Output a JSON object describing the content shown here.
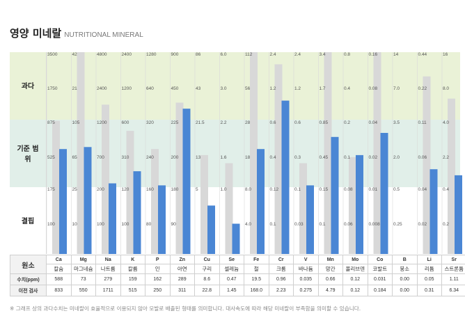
{
  "title": "영양 미네랄",
  "subtitle": "NUTRITIONAL MINERAL",
  "zones": [
    "과다",
    "기준 범위",
    "결핍"
  ],
  "colors": {
    "ref_bar": "#d8d8d8",
    "cur_bar": "#4a86d4",
    "zone_over": "#eaf2d7",
    "zone_normal": "#e1efe9"
  },
  "chart_data": {
    "type": "bar",
    "title": "영양 미네랄",
    "categories": [
      "Ca",
      "Mg",
      "Na",
      "K",
      "P",
      "Zn",
      "Cu",
      "Se",
      "Fe",
      "Cr",
      "V",
      "Mn",
      "Mo",
      "Co",
      "B",
      "Li",
      "Sr"
    ],
    "axis_ticks": [
      [
        "3500",
        "1750",
        "875",
        "525",
        "175",
        "100"
      ],
      [
        "42",
        "21",
        "105",
        "65",
        "25",
        "10"
      ],
      [
        "4800",
        "2400",
        "1200",
        "700",
        "200",
        "100"
      ],
      [
        "2400",
        "1200",
        "600",
        "310",
        "120",
        "100"
      ],
      [
        "1280",
        "640",
        "320",
        "240",
        "160",
        "80"
      ],
      [
        "900",
        "450",
        "225",
        "200",
        "180",
        "90"
      ],
      [
        "86",
        "43",
        "21.5",
        "13",
        "5"
      ],
      [
        "6.0",
        "3.0",
        "2.2",
        "1.6",
        "1.0"
      ],
      [
        "112",
        "56",
        "28",
        "18",
        "8.0",
        "4.0"
      ],
      [
        "2.4",
        "1.2",
        "0.6",
        "0.4",
        "0.12",
        "0.1"
      ],
      [
        "2.4",
        "1.2",
        "0.6",
        "0.3",
        "0.1",
        "0.03"
      ],
      [
        "3.4",
        "1.7",
        "0.85",
        "0.45",
        "0.15",
        "0.1"
      ],
      [
        "0.8",
        "0.4",
        "0.2",
        "0.1",
        "0.08",
        "0.06"
      ],
      [
        "0.16",
        "0.08",
        "0.04",
        "0.02",
        "0.01",
        "0.008"
      ],
      [
        "14",
        "7.0",
        "3.5",
        "2.0",
        "0.5",
        "0.25"
      ],
      [
        "0.44",
        "0.22",
        "0.11",
        "0.06",
        "0.04",
        "0.02"
      ],
      [
        "16",
        "8.0",
        "4.0",
        "2.2",
        "0.4",
        "0.2"
      ]
    ],
    "series": [
      {
        "name": "이전 검사",
        "values": [
          833,
          550,
          1711,
          515,
          250,
          311,
          22.8,
          1.45,
          168.0,
          2.23,
          0.275,
          4.79,
          0.12,
          0.184,
          0.0,
          0.31,
          6.34
        ]
      },
      {
        "name": "수치(ppm)",
        "values": [
          588,
          73,
          279,
          159,
          162,
          289,
          8.6,
          0.47,
          19.5,
          0.96,
          0.035,
          0.66,
          0.12,
          0.031,
          0.0,
          0.05,
          1.11
        ]
      }
    ],
    "ref_levels": [
      0.66,
      1.0,
      0.74,
      0.61,
      0.52,
      0.75,
      0.49,
      0.45,
      1.0,
      0.94,
      0.45,
      1.0,
      0.48,
      1.0,
      0,
      0.88,
      0.77
    ],
    "cur_levels": [
      0.52,
      0.53,
      0.35,
      0.41,
      0.34,
      0.72,
      0.24,
      0.15,
      0.52,
      0.76,
      0.34,
      0.58,
      0.49,
      0.6,
      0,
      0.42,
      0.39
    ]
  },
  "table": {
    "row_labels": {
      "element": "원소",
      "value": "수치(ppm)",
      "previous": "이전 검사"
    },
    "names": [
      "칼슘",
      "마그네슘",
      "나트륨",
      "칼륨",
      "인",
      "아연",
      "구리",
      "셀레늄",
      "철",
      "크롬",
      "바나듐",
      "망간",
      "몰리브덴",
      "코발트",
      "붕소",
      "리튬",
      "스트론튬"
    ],
    "values": [
      "588",
      "73",
      "279",
      "159",
      "162",
      "289",
      "8.6",
      "0.47",
      "19.5",
      "0.96",
      "0.035",
      "0.66",
      "0.12",
      "0.031",
      "0.00",
      "0.05",
      "1.11"
    ],
    "previous": [
      "833",
      "550",
      "1711",
      "515",
      "250",
      "311",
      "22.8",
      "1.45",
      "168.0",
      "2.23",
      "0.275",
      "4.79",
      "0.12",
      "0.184",
      "0.00",
      "0.31",
      "6.34"
    ]
  },
  "footnote": "※ 그래프 상의 과다수치는 미네랄이 효율적으로 이용되지 않아 모발로 배출된 형태를 의미합니다. 대사속도에 따라 해당 미네랄이 부족함을 의미할 수 있습니다."
}
